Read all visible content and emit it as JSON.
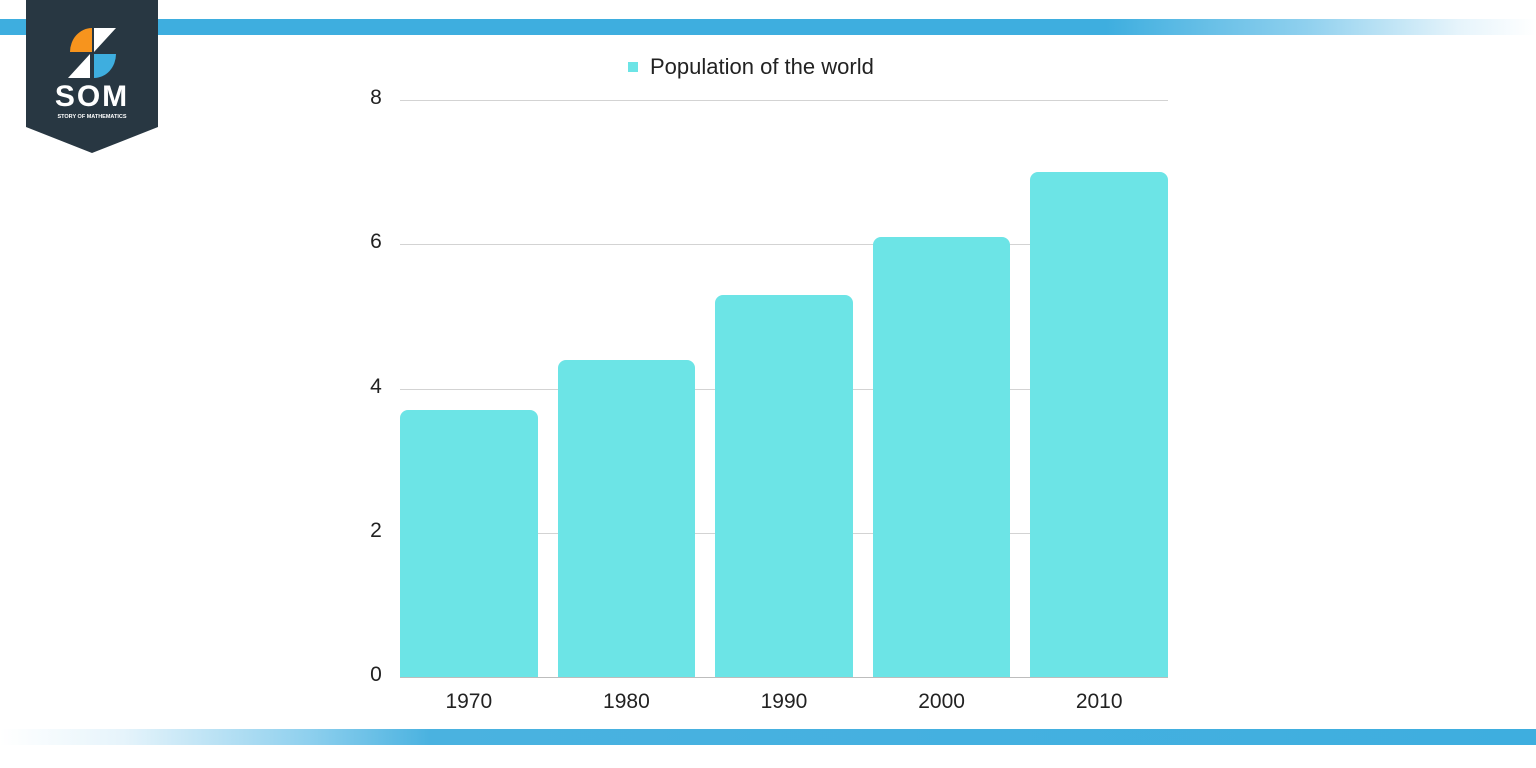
{
  "branding": {
    "logo_text": "SOM",
    "logo_subtitle": "STORY OF MATHEMATICS",
    "logo_colors": {
      "background": "#283742",
      "orange": "#f7941d",
      "blue": "#3eaedf",
      "white": "#ffffff"
    },
    "stripe_color": "#3eaedf"
  },
  "legend": {
    "label": "Population of the world",
    "swatch_color": "#6ce4e6"
  },
  "chart_data": {
    "type": "bar",
    "title": "",
    "categories": [
      "1970",
      "1980",
      "1990",
      "2000",
      "2010"
    ],
    "series": [
      {
        "name": "Population of the world",
        "values": [
          3.7,
          4.4,
          5.3,
          6.1,
          7.0
        ],
        "color": "#6ce4e6"
      }
    ],
    "xlabel": "",
    "ylabel": "",
    "ylim": [
      0,
      8
    ],
    "yticks": [
      0,
      2,
      4,
      6,
      8
    ],
    "grid": true,
    "legend_position": "top"
  }
}
